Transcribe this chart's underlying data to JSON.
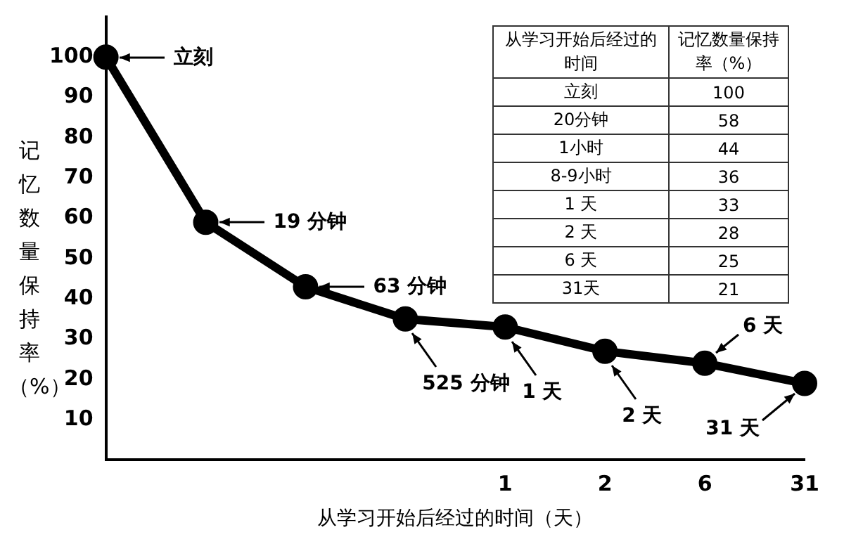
{
  "chart_data": [
    {
      "type": "line",
      "xlabel": "从学习开始后经过的时间（天）",
      "ylabel": "记忆数量保持率（%）",
      "categories": [
        null,
        null,
        null,
        null,
        "1",
        "2",
        "6",
        "31"
      ],
      "series": [
        {
          "color": "#000000",
          "values": [
            100,
            59,
            43,
            35,
            33,
            27,
            24,
            19
          ]
        }
      ],
      "ylim": [
        0,
        110
      ],
      "yticks": [
        10,
        20,
        30,
        40,
        50,
        60,
        70,
        80,
        90,
        100
      ],
      "grid": false,
      "legend": false,
      "marker": "circle",
      "line_style": "solid",
      "annotations": [
        "立刻",
        "19 分钟",
        "63 分钟",
        "525 分钟",
        {
          "text": "1 天",
          "x": "1",
          "y": 33
        },
        {
          "text": "2 天",
          "x": "2",
          "y": 27
        },
        {
          "text": "6 天",
          "x": "6",
          "y": 24
        },
        {
          "text": "31 天",
          "x": "31",
          "y": 19
        }
      ]
    },
    {
      "type": "other",
      "xlabel": "从学习开始后经过的时间",
      "ylabel": "记忆数量保持率（%）",
      "categories": [
        "立刻",
        "20分钟",
        "1小时",
        "8-9小时",
        "1 天",
        "2 天",
        "6 天",
        "31天"
      ],
      "values": [
        100,
        58,
        44,
        36,
        33,
        28,
        25,
        21
      ],
      "data_labels": true
    }
  ]
}
